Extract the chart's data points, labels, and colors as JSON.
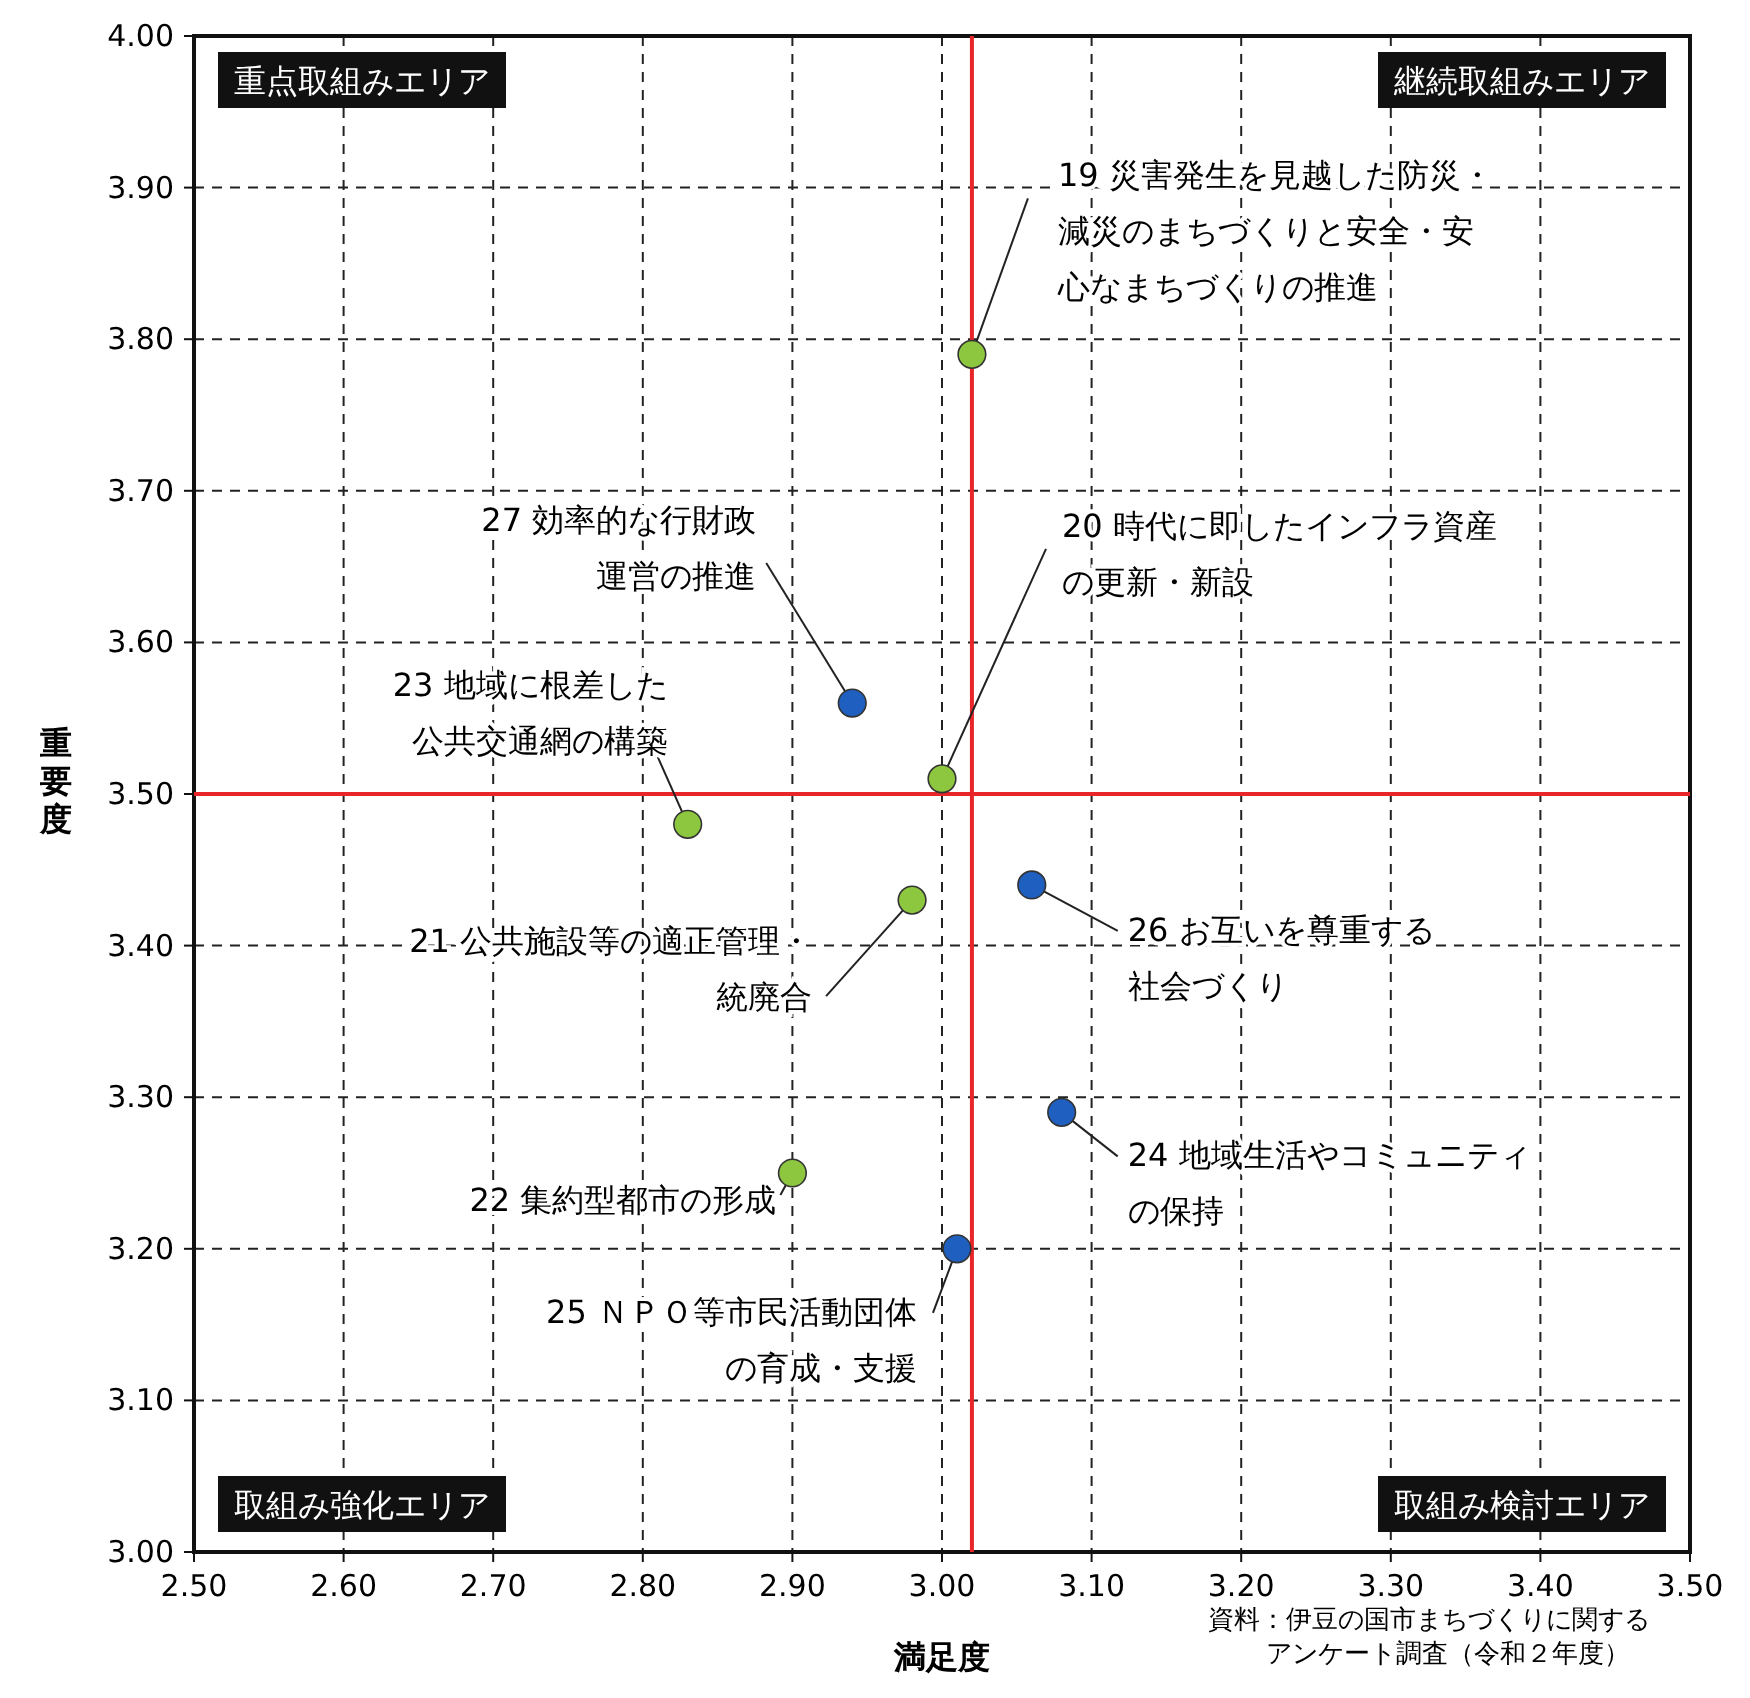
{
  "chart_data": {
    "type": "scatter",
    "xlabel": "満足度",
    "ylabel": "重要度",
    "x": [
      3.02,
      2.94,
      3.0,
      2.83,
      2.98,
      3.06,
      3.08,
      2.9,
      3.01
    ],
    "values": [
      3.79,
      3.56,
      3.51,
      3.48,
      3.43,
      3.44,
      3.29,
      3.25,
      3.2
    ],
    "colors": [
      "#8dc63f",
      "#1f5fbf",
      "#8dc63f",
      "#8dc63f",
      "#8dc63f",
      "#1f5fbf",
      "#1f5fbf",
      "#8dc63f",
      "#1f5fbf"
    ],
    "marker": "circle",
    "grid": true,
    "line_style": "dashed",
    "xlim": [
      2.5,
      3.5
    ],
    "ylim": [
      3.0,
      4.0
    ],
    "xticks": [
      {
        "value": 2.5,
        "label": "2.50"
      },
      {
        "value": 2.6,
        "label": "2.60"
      },
      {
        "value": 2.7,
        "label": "2.70"
      },
      {
        "value": 2.8,
        "label": "2.80"
      },
      {
        "value": 2.9,
        "label": "2.90"
      },
      {
        "value": 3.0,
        "label": "3.00"
      },
      {
        "value": 3.1,
        "label": "3.10"
      },
      {
        "value": 3.2,
        "label": "3.20"
      },
      {
        "value": 3.3,
        "label": "3.30"
      },
      {
        "value": 3.4,
        "label": "3.40"
      },
      {
        "value": 3.5,
        "label": "3.50"
      }
    ],
    "yticks": [
      {
        "value": 3.0,
        "label": "3.00"
      },
      {
        "value": 3.1,
        "label": "3.10"
      },
      {
        "value": 3.2,
        "label": "3.20"
      },
      {
        "value": 3.3,
        "label": "3.30"
      },
      {
        "value": 3.4,
        "label": "3.40"
      },
      {
        "value": 3.5,
        "label": "3.50"
      },
      {
        "value": 3.6,
        "label": "3.60"
      },
      {
        "value": 3.7,
        "label": "3.70"
      },
      {
        "value": 3.8,
        "label": "3.80"
      },
      {
        "value": 3.9,
        "label": "3.90"
      },
      {
        "value": 4.0,
        "label": "4.00"
      }
    ],
    "ref_lines": [
      {
        "axis": "x",
        "value": 3.02,
        "color": "#e8262a"
      },
      {
        "axis": "y",
        "value": 3.5,
        "color": "#e8262a"
      }
    ],
    "annotations": [
      {
        "text": "19 災害発生を見越した防災・減災のまちづくりと安全・安心なまちづくりの推進",
        "x": 3.02,
        "y": 3.79
      },
      {
        "text": "27 効率的な行財政運営の推進",
        "x": 2.94,
        "y": 3.56
      },
      {
        "text": "20 時代に即したインフラ資産の更新・新設",
        "x": 3.0,
        "y": 3.51
      },
      {
        "text": "23 地域に根差した公共交通網の構築",
        "x": 2.83,
        "y": 3.48
      },
      {
        "text": "21 公共施設等の適正管理・統廃合",
        "x": 2.98,
        "y": 3.43
      },
      {
        "text": "26 お互いを尊重する社会づくり",
        "x": 3.06,
        "y": 3.44
      },
      {
        "text": "24 地域生活やコミュニティの保持",
        "x": 3.08,
        "y": 3.29
      },
      {
        "text": "22 集約型都市の形成",
        "x": 2.9,
        "y": 3.25
      },
      {
        "text": "25 ＮＰＯ等市民活動団体の育成・支援",
        "x": 3.01,
        "y": 3.2
      },
      "重点取組みエリア",
      "継続取組みエリア",
      "取組み強化エリア",
      "取組み検討エリア",
      "資料：伊豆の国市まちづくりに関するアンケート調査（令和２年度）"
    ]
  }
}
